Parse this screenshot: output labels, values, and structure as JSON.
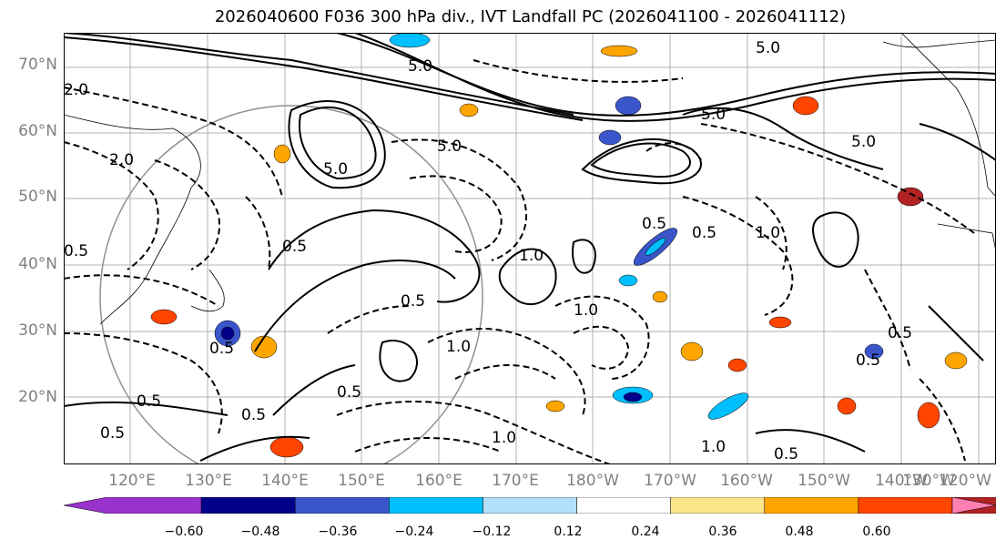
{
  "title": "2026040600 F036 300 hPa div., IVT Landfall PC (2026041100 - 2026041112)",
  "latitude_labels": [
    "70°N",
    "60°N",
    "50°N",
    "40°N",
    "30°N",
    "20°N"
  ],
  "longitude_labels": [
    "120°E",
    "130°E",
    "140°E",
    "150°E",
    "160°E",
    "170°E",
    "180°W",
    "170°W",
    "160°W",
    "150°W",
    "140°W",
    "130°W",
    "120°W"
  ],
  "colorbar": {
    "ticks": [
      "−0.60",
      "−0.48",
      "−0.36",
      "−0.24",
      "−0.12",
      "0.12",
      "0.24",
      "0.36",
      "0.48",
      "0.60"
    ],
    "colors": [
      "#9932cc",
      "#00008b",
      "#3a55c9",
      "#00bfff",
      "#b3e0fa",
      "#ffffff",
      "#fde68a",
      "#ffa500",
      "#ff4500",
      "#b22222",
      "#ff7fb0"
    ]
  },
  "contour_labels": [
    "5.0",
    "5.0",
    "5.0",
    "5.0",
    "5.0",
    "5.0",
    "2.0",
    "2.0",
    "0.5",
    "0.5",
    "0.5",
    "0.5",
    "0.5",
    "0.5",
    "0.5",
    "1.0",
    "1.0",
    "1.0",
    "1.0",
    "1.0",
    "1.0",
    "0.5",
    "0.5",
    "0.5",
    "0.5",
    "0.5",
    "0.5"
  ]
}
